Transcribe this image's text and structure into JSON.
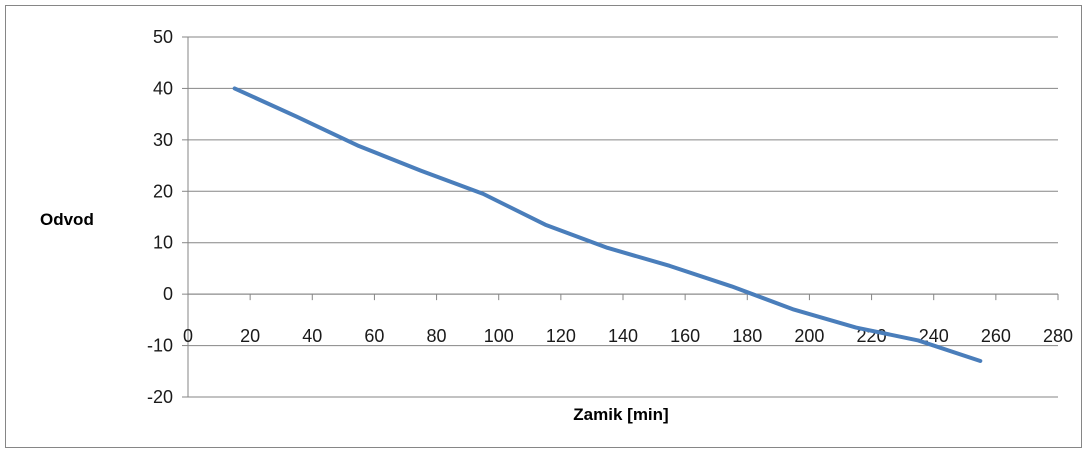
{
  "chart_data": {
    "type": "line",
    "title": "",
    "xlabel": "Zamik  [min]",
    "ylabel": "Odvod",
    "xlim": [
      0,
      280
    ],
    "ylim": [
      -20,
      50
    ],
    "x_ticks": [
      "0",
      "20",
      "40",
      "60",
      "80",
      "100",
      "120",
      "140",
      "160",
      "180",
      "200",
      "220",
      "240",
      "260",
      "280"
    ],
    "y_ticks": [
      "50",
      "40",
      "30",
      "20",
      "10",
      "0",
      "-10",
      "-20"
    ],
    "grid": "horizontal",
    "legend": "none",
    "series": [
      {
        "color": "#4a7ebb",
        "x": [
          15,
          35,
          55,
          75,
          95,
          115,
          135,
          155,
          175,
          195,
          215,
          235,
          255
        ],
        "y": [
          40,
          34.5,
          28.8,
          24,
          19.5,
          13.5,
          9,
          5.5,
          1.5,
          -3,
          -6.5,
          -9,
          -13
        ]
      }
    ]
  }
}
